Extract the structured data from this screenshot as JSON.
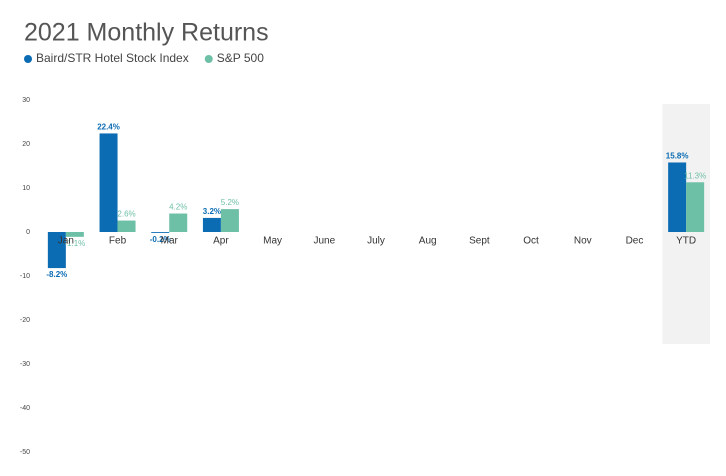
{
  "chart_data": {
    "type": "bar",
    "title": "2021 Monthly Returns",
    "categories": [
      "Jan",
      "Feb",
      "Mar",
      "Apr",
      "May",
      "June",
      "July",
      "Aug",
      "Sept",
      "Oct",
      "Nov",
      "Dec",
      "YTD"
    ],
    "series": [
      {
        "name": "Baird/STR Hotel Stock Index",
        "color": "#0b6cb3",
        "values": [
          -8.2,
          22.4,
          -0.2,
          3.2,
          null,
          null,
          null,
          null,
          null,
          null,
          null,
          null,
          15.8
        ],
        "value_labels": [
          "-8.2%",
          "22.4%",
          "-0.2%",
          "3.2%",
          null,
          null,
          null,
          null,
          null,
          null,
          null,
          null,
          "15.8%"
        ]
      },
      {
        "name": "S&P 500",
        "color": "#6dbfa6",
        "values": [
          -1.1,
          2.6,
          4.2,
          5.2,
          null,
          null,
          null,
          null,
          null,
          null,
          null,
          null,
          11.3
        ],
        "value_labels": [
          "-1.1%",
          "2.6%",
          "4.2%",
          "5.2%",
          null,
          null,
          null,
          null,
          null,
          null,
          null,
          null,
          "11.3%"
        ]
      }
    ],
    "ylim": [
      -50,
      30
    ],
    "yticks": [
      30,
      20,
      10,
      0,
      -10,
      -20,
      -30,
      -40,
      -50
    ],
    "grid": false
  }
}
